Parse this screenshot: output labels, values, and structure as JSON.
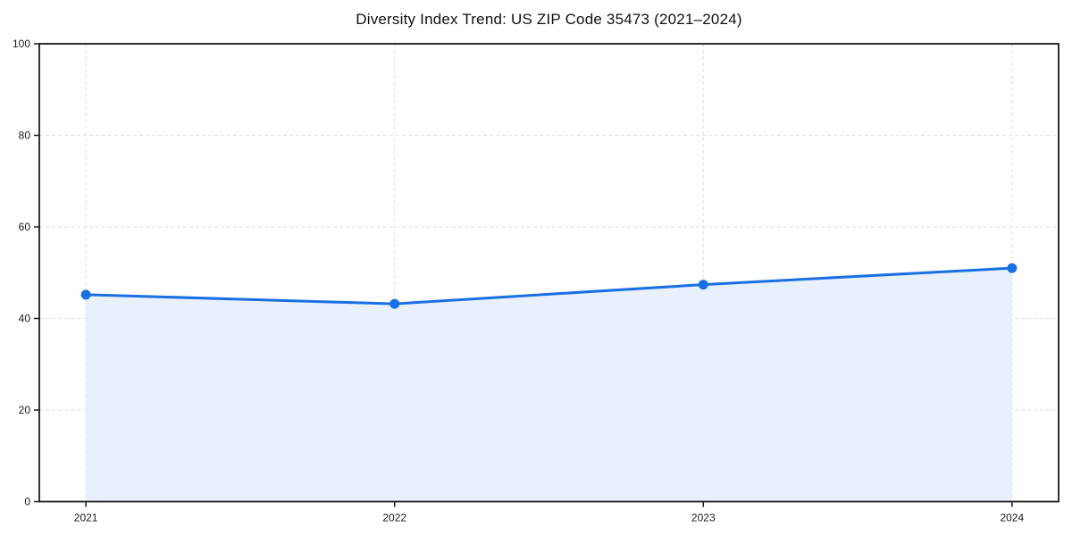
{
  "chart_data": {
    "type": "area",
    "title": "Diversity Index Trend: US ZIP Code 35473 (2021–2024)",
    "x": [
      "2021",
      "2022",
      "2023",
      "2024"
    ],
    "series": [
      {
        "name": "Diversity Index",
        "values": [
          45.2,
          43.2,
          47.4,
          51.0
        ]
      }
    ],
    "xlabel": "",
    "ylabel": "",
    "ylim": [
      0,
      100
    ],
    "yticks": [
      0,
      20,
      40,
      60,
      80,
      100
    ],
    "grid": true,
    "grid_style": "dashed",
    "legend_position": "none",
    "colors": {
      "line": "#1a6fe3",
      "marker": "#1a6fe3",
      "area_fill": "#e8f0fc",
      "grid": "#e2e2e2",
      "axis": "#1a1a1a",
      "text": "#1a1a1a",
      "background": "#ffffff"
    }
  }
}
